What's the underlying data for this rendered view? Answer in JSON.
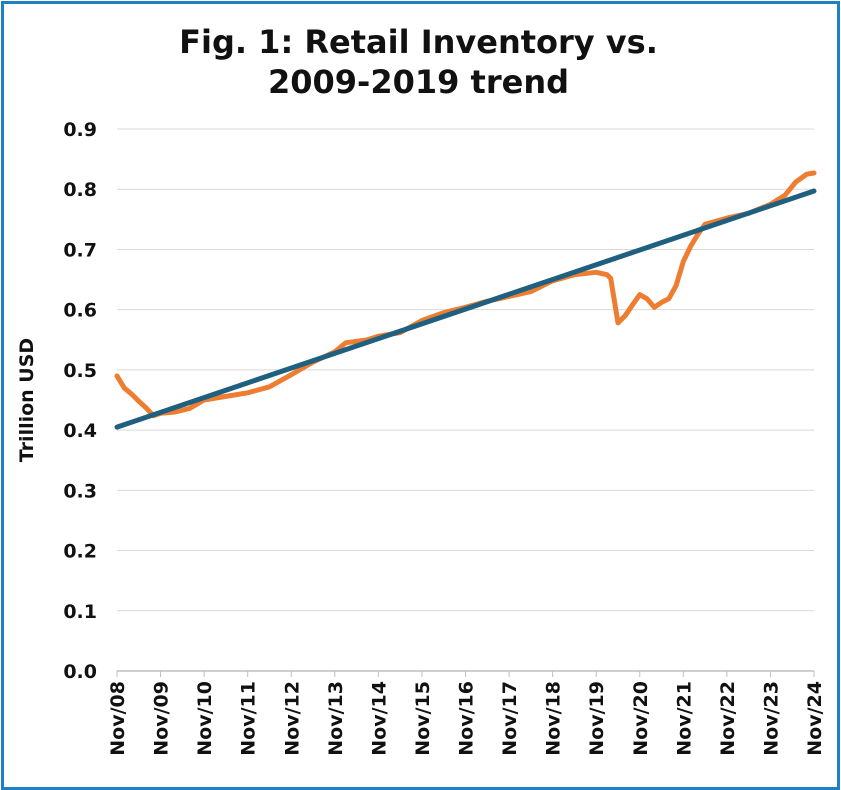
{
  "chart_data": {
    "type": "line",
    "title_lines": [
      "Fig. 1: Retail Inventory vs.",
      "2009-2019 trend"
    ],
    "ylabel": "Trillion USD",
    "xlabel": "",
    "ylim": [
      0,
      0.9
    ],
    "xlim": [
      "2008-11",
      "2024-11"
    ],
    "y_ticks": [
      "0.0",
      "0.1",
      "0.2",
      "0.3",
      "0.4",
      "0.5",
      "0.6",
      "0.7",
      "0.8",
      "0.9"
    ],
    "x_ticks": [
      "Nov/08",
      "Nov/09",
      "Nov/10",
      "Nov/11",
      "Nov/12",
      "Nov/13",
      "Nov/14",
      "Nov/15",
      "Nov/16",
      "Nov/17",
      "Nov/18",
      "Nov/19",
      "Nov/20",
      "Nov/21",
      "Nov/22",
      "Nov/23",
      "Nov/24"
    ],
    "grid": true,
    "legend": "none",
    "series": [
      {
        "key": "retail-inventory",
        "color": "#ed7d31",
        "points": [
          [
            "2008-11",
            0.49
          ],
          [
            "2009-01",
            0.47
          ],
          [
            "2009-03",
            0.46
          ],
          [
            "2009-05",
            0.448
          ],
          [
            "2009-07",
            0.437
          ],
          [
            "2009-09",
            0.424
          ],
          [
            "2009-11",
            0.428
          ],
          [
            "2010-03",
            0.43
          ],
          [
            "2010-07",
            0.436
          ],
          [
            "2010-11",
            0.45
          ],
          [
            "2011-05",
            0.456
          ],
          [
            "2011-11",
            0.462
          ],
          [
            "2012-05",
            0.472
          ],
          [
            "2012-11",
            0.492
          ],
          [
            "2013-05",
            0.513
          ],
          [
            "2013-11",
            0.53
          ],
          [
            "2014-02",
            0.545
          ],
          [
            "2014-08",
            0.55
          ],
          [
            "2014-11",
            0.556
          ],
          [
            "2015-05",
            0.562
          ],
          [
            "2015-11",
            0.582
          ],
          [
            "2016-05",
            0.595
          ],
          [
            "2016-11",
            0.604
          ],
          [
            "2017-05",
            0.614
          ],
          [
            "2017-11",
            0.622
          ],
          [
            "2018-05",
            0.63
          ],
          [
            "2018-11",
            0.648
          ],
          [
            "2019-05",
            0.658
          ],
          [
            "2019-11",
            0.662
          ],
          [
            "2020-02",
            0.658
          ],
          [
            "2020-03",
            0.652
          ],
          [
            "2020-05",
            0.578
          ],
          [
            "2020-07",
            0.59
          ],
          [
            "2020-09",
            0.608
          ],
          [
            "2020-11",
            0.625
          ],
          [
            "2021-01",
            0.618
          ],
          [
            "2021-03",
            0.604
          ],
          [
            "2021-05",
            0.612
          ],
          [
            "2021-07",
            0.618
          ],
          [
            "2021-09",
            0.64
          ],
          [
            "2021-11",
            0.68
          ],
          [
            "2022-01",
            0.705
          ],
          [
            "2022-03",
            0.725
          ],
          [
            "2022-05",
            0.742
          ],
          [
            "2022-07",
            0.745
          ],
          [
            "2022-11",
            0.752
          ],
          [
            "2023-05",
            0.76
          ],
          [
            "2023-11",
            0.775
          ],
          [
            "2024-03",
            0.79
          ],
          [
            "2024-06",
            0.812
          ],
          [
            "2024-09",
            0.825
          ],
          [
            "2024-11",
            0.827
          ]
        ]
      },
      {
        "key": "trend",
        "color": "#1f5f80",
        "points": [
          [
            "2008-11",
            0.405
          ],
          [
            "2024-11",
            0.797
          ]
        ]
      }
    ]
  }
}
